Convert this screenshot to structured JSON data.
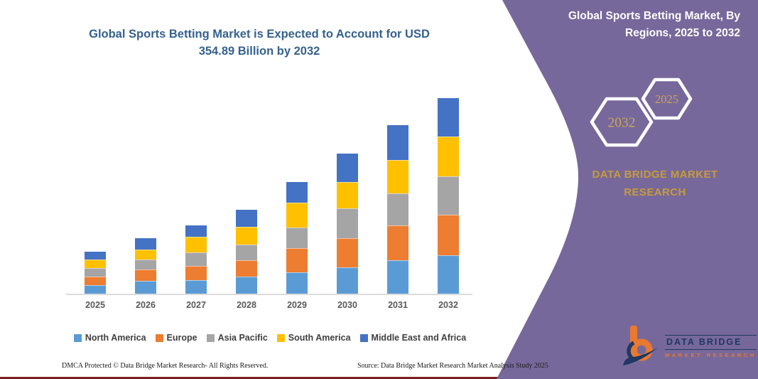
{
  "chart": {
    "title_line1": "Global Sports Betting Market is Expected to Account for USD",
    "title_line2": "354.89 Billion by 2032",
    "title_color": "#35618F"
  },
  "chart_data": {
    "type": "bar",
    "stacked": true,
    "unit": "USD Billion",
    "title": "Global Sports Betting Market is Expected to Account for USD 354.89 Billion by 2032",
    "xlabel": "",
    "ylabel": "",
    "legend_position": "bottom",
    "y_axis_visible": false,
    "categories": [
      "2025",
      "2026",
      "2027",
      "2028",
      "2029",
      "2030",
      "2031",
      "2032"
    ],
    "series": [
      {
        "name": "North America",
        "color": "#5B9BD5",
        "values": [
          15.9,
          23.7,
          24.6,
          31.0,
          38.3,
          48.2,
          61.2,
          69.1
        ]
      },
      {
        "name": "Europe",
        "color": "#ED7D31",
        "values": [
          15.1,
          20.3,
          25.9,
          30.1,
          44.5,
          52.6,
          62.5,
          74.1
        ]
      },
      {
        "name": "Asia Pacific",
        "color": "#A5A5A5",
        "values": [
          15.5,
          18.1,
          24.6,
          28.1,
          37.9,
          54.3,
          58.2,
          70.2
        ]
      },
      {
        "name": "South America",
        "color": "#FFC000",
        "values": [
          15.1,
          17.7,
          28.5,
          32.3,
          44.0,
          48.2,
          61.3,
          72.0
        ]
      },
      {
        "name": "Middle East and Africa",
        "color": "#4472C4",
        "values": [
          14.7,
          20.3,
          20.2,
          31.0,
          37.5,
          50.8,
          62.9,
          69.5
        ]
      }
    ],
    "totals_by_year": [
      76.3,
      100.1,
      123.8,
      152.5,
      202.2,
      254.1,
      306.1,
      354.89
    ],
    "annotation_total_2032": 354.89
  },
  "panel": {
    "bg_color": "#77689B",
    "title_line1": "Global Sports Betting Market, By",
    "title_line2": "Regions, 2025 to 2032",
    "hexagon_back_label": "2025",
    "hexagon_front_label": "2032",
    "hexagon_text_color": "#C9A45C",
    "brand_line1": "DATA BRIDGE MARKET",
    "brand_line2": "RESEARCH",
    "brand_color": "#C79B3C",
    "logo": {
      "name": "DATA BRIDGE",
      "subtitle": "MARKET RESEARCH",
      "navy": "#1F3864",
      "orange": "#E8792F"
    }
  },
  "footer": {
    "dmca": "DMCA Protected © Data Bridge Market Research-  All Rights Reserved.",
    "source": "Source: Data Bridge Market Research  Market Analysis Study 2025",
    "rule_color": "#7B1E1E"
  }
}
